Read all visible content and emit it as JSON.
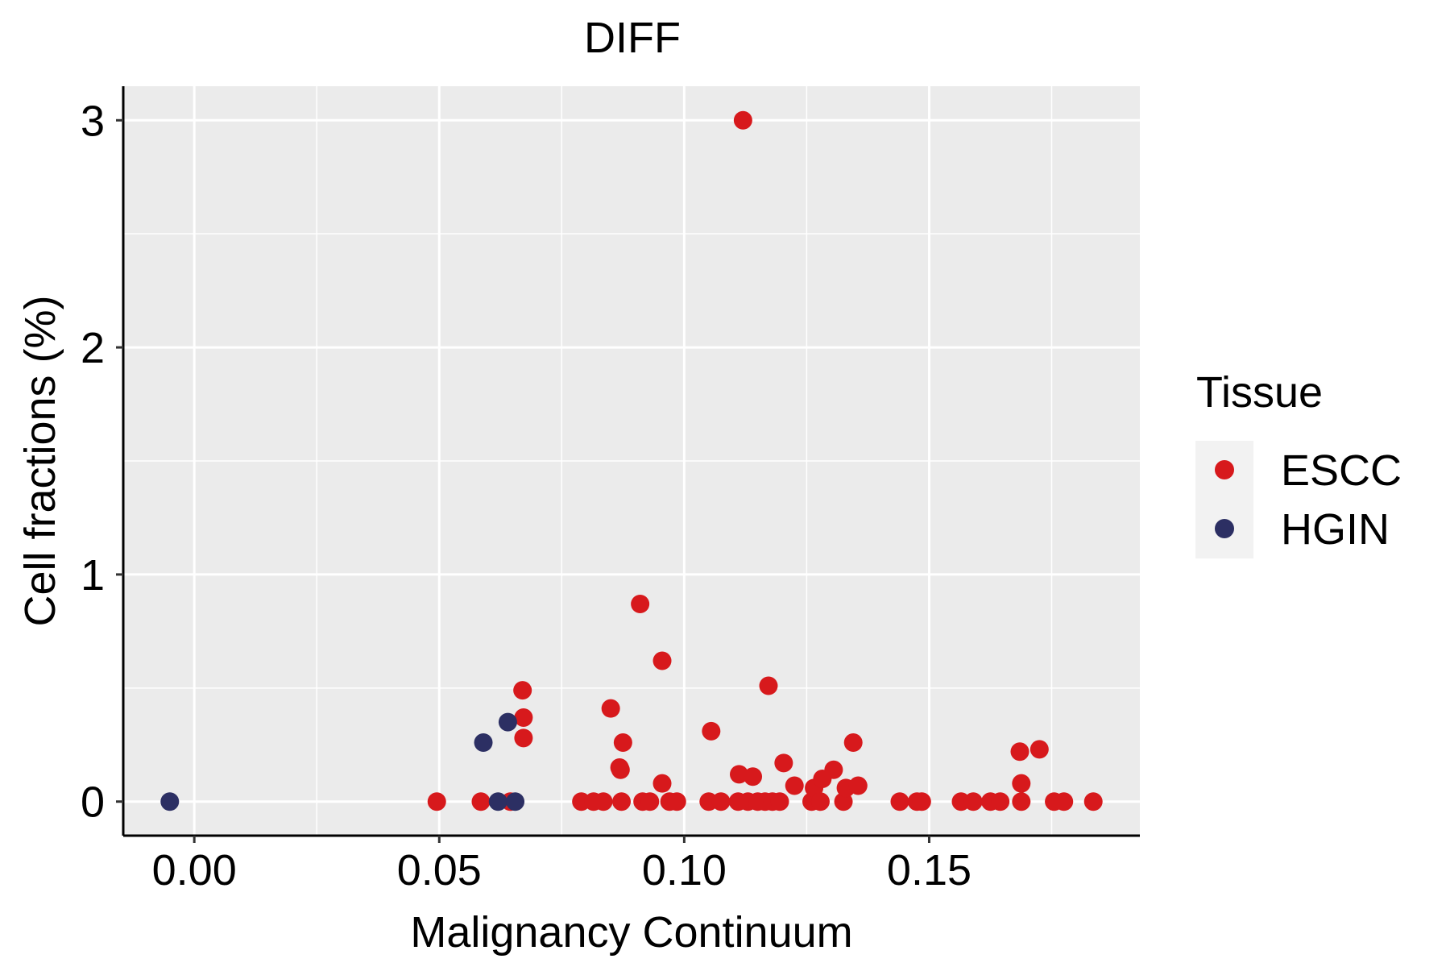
{
  "chart_data": {
    "type": "scatter",
    "title": "DIFF",
    "xlabel": "Malignancy Continuum",
    "ylabel": "Cell fractions (%)",
    "xlim": [
      -0.0145,
      0.193
    ],
    "ylim": [
      -0.15,
      3.15
    ],
    "x_ticks": [
      0.0,
      0.05,
      0.1,
      0.15
    ],
    "x_tick_labels": [
      "0.00",
      "0.05",
      "0.10",
      "0.15"
    ],
    "y_ticks": [
      0,
      1,
      2,
      3
    ],
    "y_tick_labels": [
      "0",
      "1",
      "2",
      "3"
    ],
    "grid": true,
    "panel_background": "#EBEBEB",
    "legend": {
      "title": "Tissue",
      "position": "right",
      "entries": [
        {
          "label": "ESCC",
          "color": "#D7191C"
        },
        {
          "label": "HGIN",
          "color": "#2C2F63"
        }
      ]
    },
    "series": [
      {
        "name": "ESCC",
        "color": "#D7191C",
        "points": [
          [
            0.0495,
            0.0
          ],
          [
            0.0585,
            0.0
          ],
          [
            0.0645,
            0.0
          ],
          [
            0.067,
            0.49
          ],
          [
            0.0672,
            0.37
          ],
          [
            0.0672,
            0.28
          ],
          [
            0.079,
            0.0
          ],
          [
            0.0815,
            0.0
          ],
          [
            0.0835,
            0.0
          ],
          [
            0.085,
            0.41
          ],
          [
            0.0868,
            0.15
          ],
          [
            0.087,
            0.14
          ],
          [
            0.0872,
            0.0
          ],
          [
            0.0875,
            0.26
          ],
          [
            0.091,
            0.87
          ],
          [
            0.0915,
            0.0
          ],
          [
            0.093,
            0.0
          ],
          [
            0.0955,
            0.62
          ],
          [
            0.0955,
            0.08
          ],
          [
            0.097,
            0.0
          ],
          [
            0.0985,
            0.0
          ],
          [
            0.105,
            0.0
          ],
          [
            0.1055,
            0.31
          ],
          [
            0.1075,
            0.0
          ],
          [
            0.111,
            0.0
          ],
          [
            0.1112,
            0.12
          ],
          [
            0.112,
            3.0
          ],
          [
            0.113,
            0.0
          ],
          [
            0.114,
            0.11
          ],
          [
            0.115,
            0.0
          ],
          [
            0.1165,
            0.0
          ],
          [
            0.1172,
            0.51
          ],
          [
            0.118,
            0.0
          ],
          [
            0.1195,
            0.0
          ],
          [
            0.1203,
            0.17
          ],
          [
            0.1225,
            0.07
          ],
          [
            0.126,
            0.0
          ],
          [
            0.1265,
            0.06
          ],
          [
            0.1278,
            0.0
          ],
          [
            0.1282,
            0.1
          ],
          [
            0.1305,
            0.14
          ],
          [
            0.1325,
            0.0
          ],
          [
            0.133,
            0.06
          ],
          [
            0.1345,
            0.26
          ],
          [
            0.1355,
            0.07
          ],
          [
            0.144,
            0.0
          ],
          [
            0.1475,
            0.0
          ],
          [
            0.1485,
            0.0
          ],
          [
            0.1565,
            0.0
          ],
          [
            0.159,
            0.0
          ],
          [
            0.1625,
            0.0
          ],
          [
            0.1645,
            0.0
          ],
          [
            0.1685,
            0.22
          ],
          [
            0.1688,
            0.08
          ],
          [
            0.1688,
            0.0
          ],
          [
            0.1725,
            0.23
          ],
          [
            0.1755,
            0.0
          ],
          [
            0.1775,
            0.0
          ],
          [
            0.1835,
            0.0
          ]
        ]
      },
      {
        "name": "HGIN",
        "color": "#2C2F63",
        "points": [
          [
            -0.005,
            0.0
          ],
          [
            0.059,
            0.26
          ],
          [
            0.062,
            0.0
          ],
          [
            0.064,
            0.35
          ],
          [
            0.0655,
            0.0
          ]
        ]
      }
    ]
  }
}
